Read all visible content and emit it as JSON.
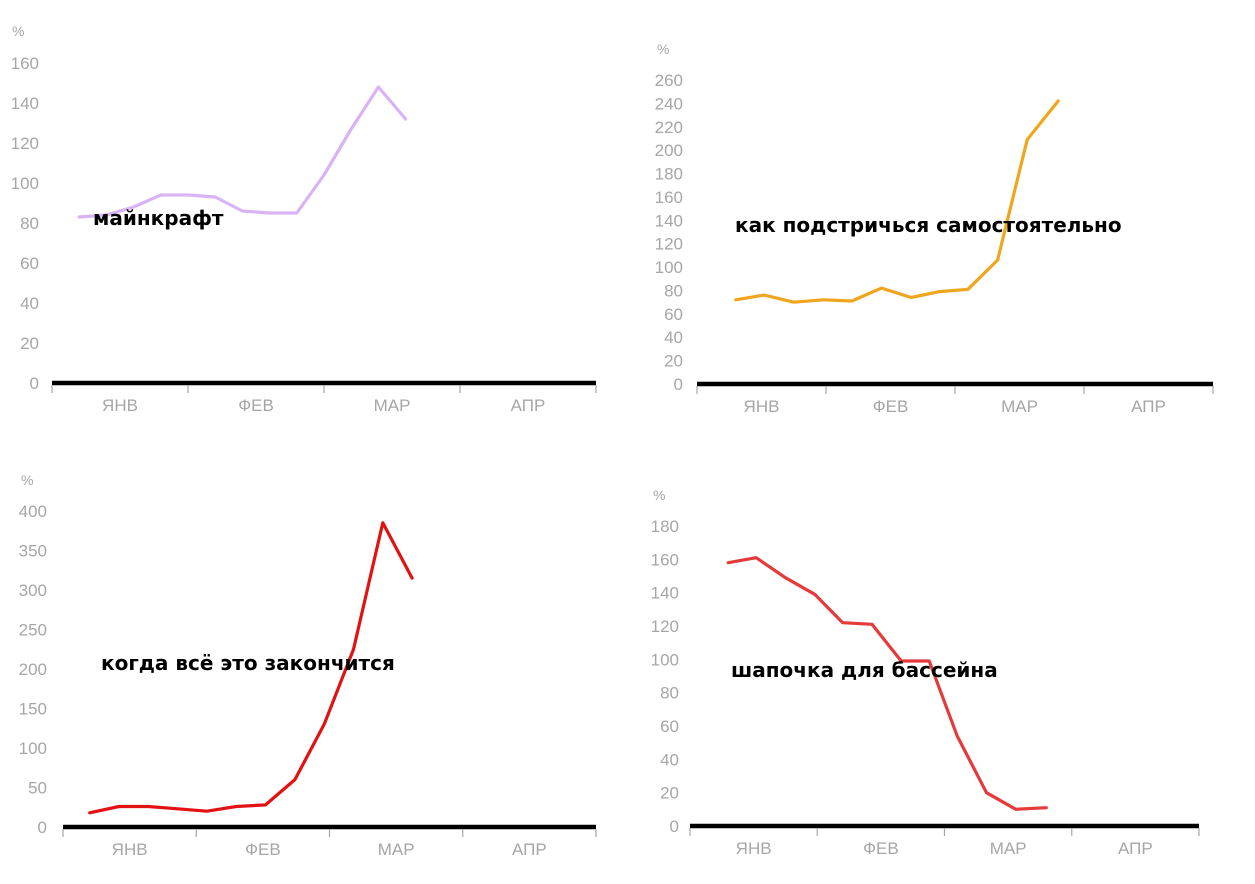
{
  "chart_data": [
    {
      "type": "line",
      "title": "майнкрафт",
      "ylabel": "%",
      "ylim": [
        0,
        160
      ],
      "yticks": [
        "0",
        "20",
        "40",
        "60",
        "80",
        "100",
        "120",
        "140",
        "160"
      ],
      "categories": [
        "ЯНВ",
        "ФЕВ",
        "МАР",
        "АПР"
      ],
      "series": [
        {
          "color": "#d9b3f5",
          "x": [
            0.2,
            0.4,
            0.6,
            0.8,
            1.0,
            1.2,
            1.4,
            1.6,
            1.8,
            2.0,
            2.2,
            2.4,
            2.6
          ],
          "values": [
            83,
            84,
            88,
            94,
            94,
            93,
            86,
            85,
            85,
            104,
            127,
            148,
            132
          ]
        }
      ]
    },
    {
      "type": "line",
      "title": "как подстричься самостоятельно",
      "ylabel": "%",
      "ylim": [
        0,
        260
      ],
      "yticks": [
        "0",
        "20",
        "40",
        "60",
        "80",
        "100",
        "120",
        "140",
        "160",
        "180",
        "200",
        "220",
        "240",
        "260"
      ],
      "categories": [
        "ЯНВ",
        "ФЕВ",
        "МАР",
        "АПР"
      ],
      "series": [
        {
          "color": "#f0a51e",
          "x": [
            0.3,
            0.52,
            0.75,
            0.98,
            1.2,
            1.43,
            1.66,
            1.88,
            2.1,
            2.33,
            2.56,
            2.8
          ],
          "values": [
            72,
            76,
            70,
            72,
            71,
            82,
            74,
            79,
            81,
            106,
            209,
            242
          ]
        }
      ]
    },
    {
      "type": "line",
      "title": "когда всё это закончится",
      "ylabel": "%",
      "ylim": [
        0,
        400
      ],
      "yticks": [
        "0",
        "50",
        "100",
        "150",
        "200",
        "250",
        "300",
        "350",
        "400"
      ],
      "categories": [
        "ЯНВ",
        "ФЕВ",
        "МАР",
        "АПР"
      ],
      "series": [
        {
          "color": "#e31212",
          "x": [
            0.2,
            0.42,
            0.64,
            0.86,
            1.08,
            1.3,
            1.52,
            1.74,
            1.96,
            2.18,
            2.4,
            2.62
          ],
          "values": [
            18,
            26,
            26,
            23,
            20,
            26,
            28,
            60,
            130,
            225,
            385,
            315
          ]
        }
      ]
    },
    {
      "type": "line",
      "title": "шапочка для бассейна",
      "ylabel": "%",
      "ylim": [
        0,
        180
      ],
      "yticks": [
        "0",
        "20",
        "40",
        "60",
        "80",
        "100",
        "120",
        "140",
        "160",
        "180"
      ],
      "categories": [
        "ЯНВ",
        "ФЕВ",
        "МАР",
        "АПР"
      ],
      "series": [
        {
          "color": "#e53a3a",
          "x": [
            0.3,
            0.52,
            0.75,
            0.98,
            1.2,
            1.43,
            1.66,
            1.88,
            2.1,
            2.33,
            2.56,
            2.8
          ],
          "values": [
            158,
            161,
            149,
            139,
            122,
            121,
            99,
            99,
            54,
            20,
            10,
            11
          ]
        }
      ]
    }
  ]
}
